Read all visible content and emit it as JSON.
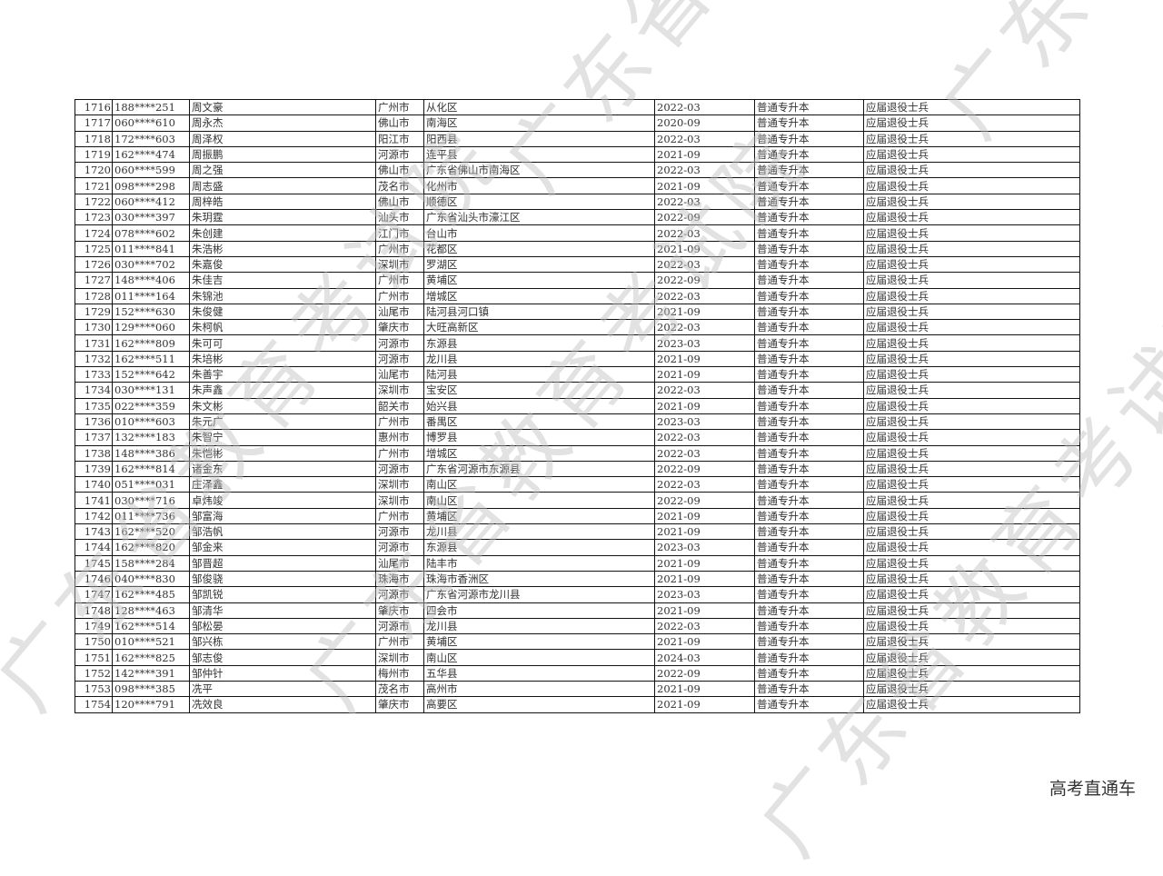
{
  "watermark": "广东省教育考试院",
  "footer": "高考直通车",
  "rows": [
    [
      "1716",
      "188****251",
      "周文豪",
      "广州市",
      "从化区",
      "2022-03",
      "普通专升本",
      "应届退役士兵"
    ],
    [
      "1717",
      "060****610",
      "周永杰",
      "佛山市",
      "南海区",
      "2020-09",
      "普通专升本",
      "应届退役士兵"
    ],
    [
      "1718",
      "172****603",
      "周泽权",
      "阳江市",
      "阳西县",
      "2022-03",
      "普通专升本",
      "应届退役士兵"
    ],
    [
      "1719",
      "162****474",
      "周振鹏",
      "河源市",
      "连平县",
      "2021-09",
      "普通专升本",
      "应届退役士兵"
    ],
    [
      "1720",
      "060****599",
      "周之强",
      "佛山市",
      "广东省佛山市南海区",
      "2022-03",
      "普通专升本",
      "应届退役士兵"
    ],
    [
      "1721",
      "098****298",
      "周志盛",
      "茂名市",
      "化州市",
      "2021-09",
      "普通专升本",
      "应届退役士兵"
    ],
    [
      "1722",
      "060****412",
      "周梓皓",
      "佛山市",
      "顺德区",
      "2022-03",
      "普通专升本",
      "应届退役士兵"
    ],
    [
      "1723",
      "030****397",
      "朱玥霆",
      "汕头市",
      "广东省汕头市濠江区",
      "2022-09",
      "普通专升本",
      "应届退役士兵"
    ],
    [
      "1724",
      "078****602",
      "朱创建",
      "江门市",
      "台山市",
      "2022-03",
      "普通专升本",
      "应届退役士兵"
    ],
    [
      "1725",
      "011****841",
      "朱浩彬",
      "广州市",
      "花都区",
      "2021-09",
      "普通专升本",
      "应届退役士兵"
    ],
    [
      "1726",
      "030****702",
      "朱嘉俊",
      "深圳市",
      "罗湖区",
      "2022-03",
      "普通专升本",
      "应届退役士兵"
    ],
    [
      "1727",
      "148****406",
      "朱佳吉",
      "广州市",
      "黄埔区",
      "2022-09",
      "普通专升本",
      "应届退役士兵"
    ],
    [
      "1728",
      "011****164",
      "朱锦池",
      "广州市",
      "增城区",
      "2022-03",
      "普通专升本",
      "应届退役士兵"
    ],
    [
      "1729",
      "152****630",
      "朱俊健",
      "汕尾市",
      "陆河县河口镇",
      "2021-09",
      "普通专升本",
      "应届退役士兵"
    ],
    [
      "1730",
      "129****060",
      "朱柯帆",
      "肇庆市",
      "大旺高新区",
      "2022-03",
      "普通专升本",
      "应届退役士兵"
    ],
    [
      "1731",
      "162****809",
      "朱可可",
      "河源市",
      "东源县",
      "2023-03",
      "普通专升本",
      "应届退役士兵"
    ],
    [
      "1732",
      "162****511",
      "朱培彬",
      "河源市",
      "龙川县",
      "2021-09",
      "普通专升本",
      "应届退役士兵"
    ],
    [
      "1733",
      "152****642",
      "朱善宇",
      "汕尾市",
      "陆河县",
      "2021-09",
      "普通专升本",
      "应届退役士兵"
    ],
    [
      "1734",
      "030****131",
      "朱声鑫",
      "深圳市",
      "宝安区",
      "2022-03",
      "普通专升本",
      "应届退役士兵"
    ],
    [
      "1735",
      "022****359",
      "朱文彬",
      "韶关市",
      "始兴县",
      "2021-09",
      "普通专升本",
      "应届退役士兵"
    ],
    [
      "1736",
      "010****603",
      "朱元广",
      "广州市",
      "番禺区",
      "2023-03",
      "普通专升本",
      "应届退役士兵"
    ],
    [
      "1737",
      "132****183",
      "朱智宁",
      "惠州市",
      "博罗县",
      "2022-03",
      "普通专升本",
      "应届退役士兵"
    ],
    [
      "1738",
      "148****386",
      "朱恺彬",
      "广州市",
      "增城区",
      "2022-03",
      "普通专升本",
      "应届退役士兵"
    ],
    [
      "1739",
      "162****814",
      "诸金东",
      "河源市",
      "广东省河源市东源县",
      "2022-09",
      "普通专升本",
      "应届退役士兵"
    ],
    [
      "1740",
      "051****031",
      "庄泽鑫",
      "深圳市",
      "南山区",
      "2022-03",
      "普通专升本",
      "应届退役士兵"
    ],
    [
      "1741",
      "030****716",
      "卓炜竣",
      "深圳市",
      "南山区",
      "2022-09",
      "普通专升本",
      "应届退役士兵"
    ],
    [
      "1742",
      "011****736",
      "邹富海",
      "广州市",
      "黄埔区",
      "2021-09",
      "普通专升本",
      "应届退役士兵"
    ],
    [
      "1743",
      "162****520",
      "邹浩帆",
      "河源市",
      "龙川县",
      "2021-09",
      "普通专升本",
      "应届退役士兵"
    ],
    [
      "1744",
      "162****820",
      "邹金来",
      "河源市",
      "东源县",
      "2023-03",
      "普通专升本",
      "应届退役士兵"
    ],
    [
      "1745",
      "158****284",
      "邹晋超",
      "汕尾市",
      "陆丰市",
      "2021-09",
      "普通专升本",
      "应届退役士兵"
    ],
    [
      "1746",
      "040****830",
      "邹俊骁",
      "珠海市",
      "珠海市香洲区",
      "2021-09",
      "普通专升本",
      "应届退役士兵"
    ],
    [
      "1747",
      "162****485",
      "邹凯锐",
      "河源市",
      "广东省河源市龙川县",
      "2023-03",
      "普通专升本",
      "应届退役士兵"
    ],
    [
      "1748",
      "128****463",
      "邹清华",
      "肇庆市",
      "四会市",
      "2021-09",
      "普通专升本",
      "应届退役士兵"
    ],
    [
      "1749",
      "162****514",
      "邹松晏",
      "河源市",
      "龙川县",
      "2022-03",
      "普通专升本",
      "应届退役士兵"
    ],
    [
      "1750",
      "010****521",
      "邹兴栋",
      "广州市",
      "黄埔区",
      "2021-09",
      "普通专升本",
      "应届退役士兵"
    ],
    [
      "1751",
      "162****825",
      "邹志俊",
      "深圳市",
      "南山区",
      "2024-03",
      "普通专升本",
      "应届退役士兵"
    ],
    [
      "1752",
      "142****391",
      "邹仲针",
      "梅州市",
      "五华县",
      "2022-09",
      "普通专升本",
      "应届退役士兵"
    ],
    [
      "1753",
      "098****385",
      "冼平",
      "茂名市",
      "高州市",
      "2021-09",
      "普通专升本",
      "应届退役士兵"
    ],
    [
      "1754",
      "120****791",
      "冼效良",
      "肇庆市",
      "高要区",
      "2021-09",
      "普通专升本",
      "应届退役士兵"
    ]
  ]
}
